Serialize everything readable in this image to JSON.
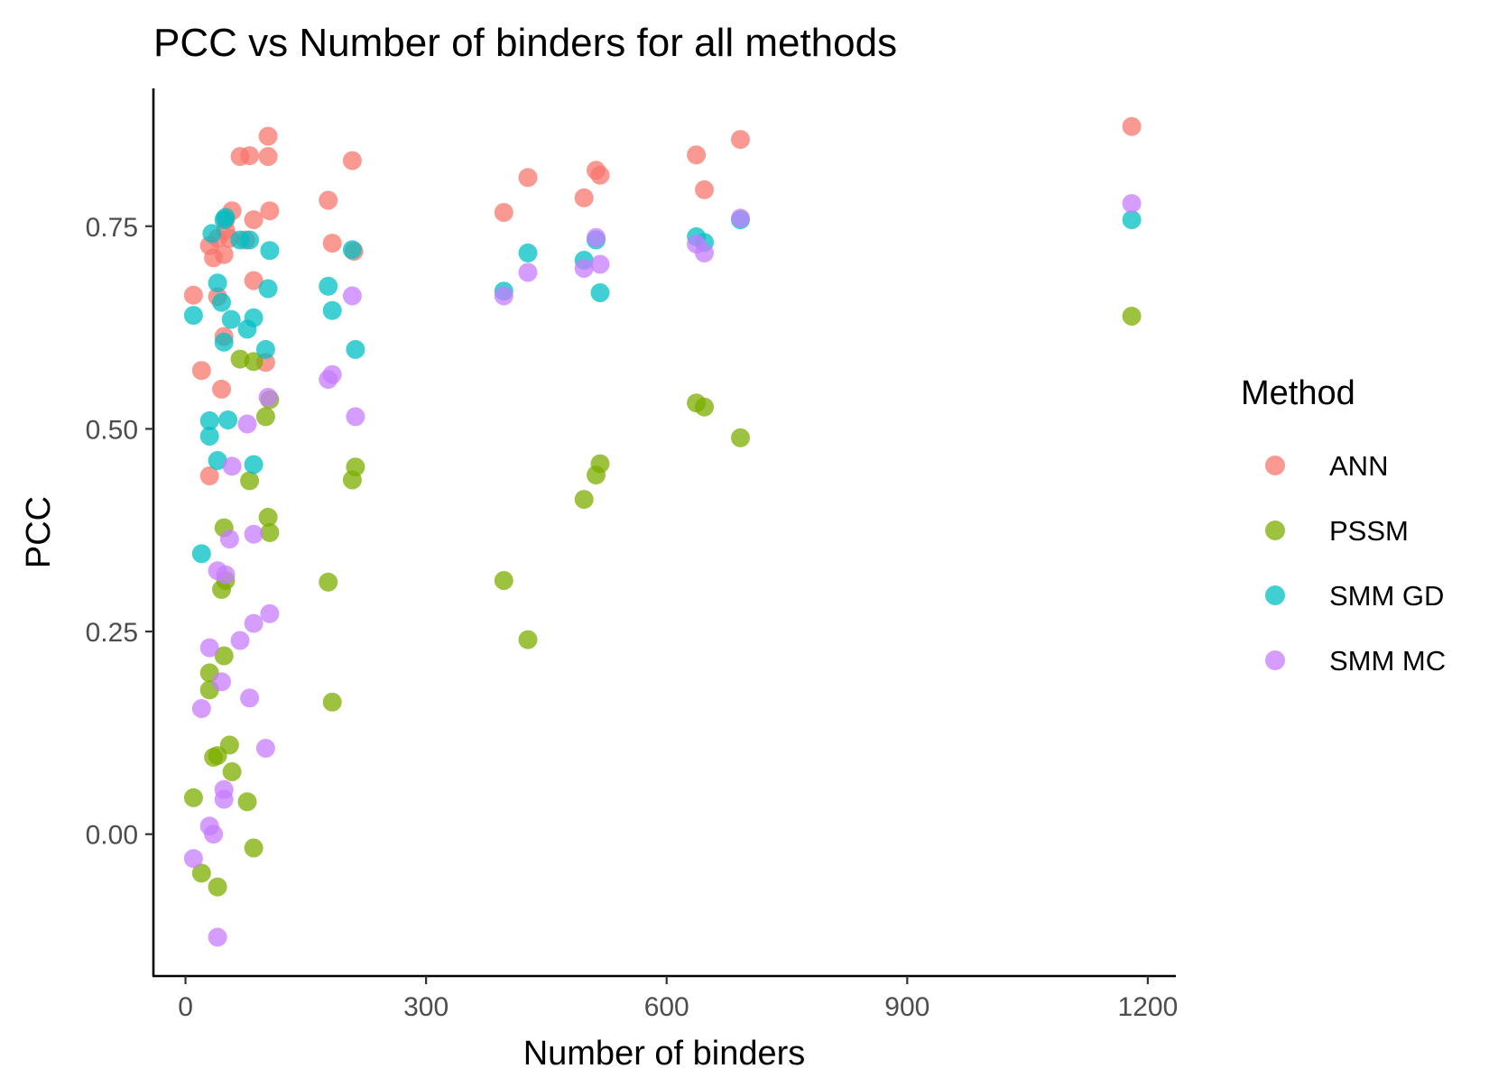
{
  "chart_data": {
    "type": "scatter",
    "title": "PCC vs Number of binders for all methods",
    "xlabel": "Number of binders",
    "ylabel": "PCC",
    "xlim": [
      -40,
      1235
    ],
    "ylim": [
      -0.175,
      0.92
    ],
    "xticks": [
      0,
      300,
      600,
      900,
      1200
    ],
    "xtick_labels": [
      "0",
      "300",
      "600",
      "900",
      "1200"
    ],
    "yticks": [
      0.0,
      0.25,
      0.5,
      0.75
    ],
    "ytick_labels": [
      "0.00",
      "0.25",
      "0.50",
      "0.75"
    ],
    "grid": false,
    "legend": {
      "title": "Method",
      "position": "right"
    },
    "series": [
      {
        "name": "ANN",
        "color": "#F8766D",
        "points": [
          [
            10,
            0.665
          ],
          [
            20,
            0.572
          ],
          [
            30,
            0.442
          ],
          [
            30,
            0.726
          ],
          [
            35,
            0.711
          ],
          [
            40,
            0.735
          ],
          [
            40,
            0.663
          ],
          [
            45,
            0.549
          ],
          [
            48,
            0.614
          ],
          [
            48,
            0.715
          ],
          [
            50,
            0.745
          ],
          [
            50,
            0.758
          ],
          [
            55,
            0.735
          ],
          [
            58,
            0.769
          ],
          [
            68,
            0.836
          ],
          [
            75,
            0.733
          ],
          [
            80,
            0.837
          ],
          [
            85,
            0.758
          ],
          [
            85,
            0.683
          ],
          [
            100,
            0.582
          ],
          [
            103,
            0.861
          ],
          [
            103,
            0.836
          ],
          [
            105,
            0.769
          ],
          [
            178,
            0.782
          ],
          [
            183,
            0.729
          ],
          [
            208,
            0.831
          ],
          [
            210,
            0.719
          ],
          [
            397,
            0.767
          ],
          [
            427,
            0.81
          ],
          [
            497,
            0.785
          ],
          [
            512,
            0.819
          ],
          [
            517,
            0.813
          ],
          [
            637,
            0.838
          ],
          [
            647,
            0.795
          ],
          [
            692,
            0.857
          ],
          [
            1180,
            0.873
          ]
        ]
      },
      {
        "name": "PSSM",
        "color": "#7CAE00",
        "points": [
          [
            10,
            0.045
          ],
          [
            20,
            -0.048
          ],
          [
            30,
            0.178
          ],
          [
            30,
            0.199
          ],
          [
            35,
            0.095
          ],
          [
            40,
            0.097
          ],
          [
            40,
            -0.065
          ],
          [
            45,
            0.302
          ],
          [
            48,
            0.22
          ],
          [
            48,
            0.378
          ],
          [
            50,
            0.313
          ],
          [
            55,
            0.11
          ],
          [
            58,
            0.077
          ],
          [
            68,
            0.586
          ],
          [
            77,
            0.04
          ],
          [
            80,
            0.436
          ],
          [
            85,
            -0.017
          ],
          [
            85,
            0.583
          ],
          [
            100,
            0.515
          ],
          [
            103,
            0.391
          ],
          [
            105,
            0.372
          ],
          [
            105,
            0.536
          ],
          [
            178,
            0.311
          ],
          [
            183,
            0.163
          ],
          [
            208,
            0.437
          ],
          [
            212,
            0.453
          ],
          [
            397,
            0.313
          ],
          [
            427,
            0.24
          ],
          [
            497,
            0.413
          ],
          [
            512,
            0.443
          ],
          [
            517,
            0.457
          ],
          [
            637,
            0.532
          ],
          [
            647,
            0.527
          ],
          [
            692,
            0.489
          ],
          [
            1180,
            0.639
          ]
        ]
      },
      {
        "name": "SMM GD",
        "color": "#00BFC4",
        "points": [
          [
            10,
            0.64
          ],
          [
            20,
            0.346
          ],
          [
            30,
            0.51
          ],
          [
            30,
            0.491
          ],
          [
            33,
            0.741
          ],
          [
            40,
            0.461
          ],
          [
            40,
            0.68
          ],
          [
            45,
            0.656
          ],
          [
            48,
            0.607
          ],
          [
            48,
            0.758
          ],
          [
            50,
            0.761
          ],
          [
            53,
            0.511
          ],
          [
            57,
            0.635
          ],
          [
            68,
            0.733
          ],
          [
            77,
            0.623
          ],
          [
            80,
            0.733
          ],
          [
            85,
            0.637
          ],
          [
            85,
            0.456
          ],
          [
            100,
            0.598
          ],
          [
            103,
            0.673
          ],
          [
            105,
            0.72
          ],
          [
            178,
            0.676
          ],
          [
            183,
            0.646
          ],
          [
            208,
            0.721
          ],
          [
            212,
            0.598
          ],
          [
            397,
            0.67
          ],
          [
            427,
            0.717
          ],
          [
            497,
            0.708
          ],
          [
            512,
            0.733
          ],
          [
            517,
            0.668
          ],
          [
            637,
            0.737
          ],
          [
            647,
            0.73
          ],
          [
            692,
            0.758
          ],
          [
            1180,
            0.758
          ]
        ]
      },
      {
        "name": "SMM MC",
        "color": "#C77CFF",
        "points": [
          [
            10,
            -0.03
          ],
          [
            20,
            0.155
          ],
          [
            30,
            0.23
          ],
          [
            30,
            0.01
          ],
          [
            35,
            0.0
          ],
          [
            40,
            0.325
          ],
          [
            40,
            -0.127
          ],
          [
            45,
            0.188
          ],
          [
            48,
            0.055
          ],
          [
            48,
            0.043
          ],
          [
            50,
            0.32
          ],
          [
            55,
            0.364
          ],
          [
            58,
            0.454
          ],
          [
            68,
            0.239
          ],
          [
            77,
            0.506
          ],
          [
            80,
            0.168
          ],
          [
            85,
            0.26
          ],
          [
            85,
            0.37
          ],
          [
            100,
            0.106
          ],
          [
            103,
            0.539
          ],
          [
            105,
            0.272
          ],
          [
            178,
            0.561
          ],
          [
            183,
            0.567
          ],
          [
            208,
            0.664
          ],
          [
            212,
            0.515
          ],
          [
            397,
            0.664
          ],
          [
            427,
            0.693
          ],
          [
            497,
            0.698
          ],
          [
            512,
            0.736
          ],
          [
            517,
            0.703
          ],
          [
            637,
            0.728
          ],
          [
            647,
            0.717
          ],
          [
            692,
            0.76
          ],
          [
            1180,
            0.778
          ]
        ]
      }
    ]
  }
}
